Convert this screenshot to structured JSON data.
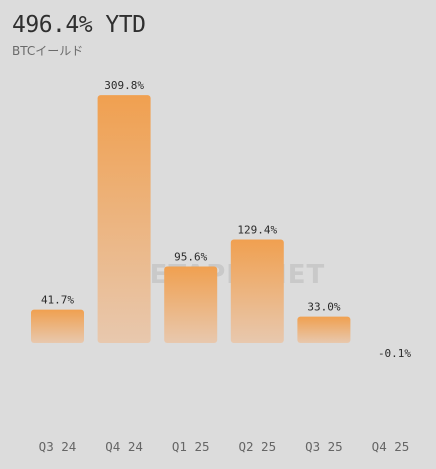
{
  "header": {
    "title": "496.4% YTD",
    "subtitle": "BTCイールド"
  },
  "watermark": "METAPLANET",
  "colors": {
    "background": "#dcdcdc",
    "bar_top": "#f0a050",
    "bar_bottom": "#e8c8ae"
  },
  "chart_data": {
    "type": "bar",
    "title": "496.4% YTD",
    "subtitle": "BTCイールド",
    "categories": [
      "Q3 24",
      "Q4 24",
      "Q1 25",
      "Q2 25",
      "Q3 25",
      "Q4 25"
    ],
    "values": [
      41.7,
      309.8,
      95.6,
      129.4,
      33.0,
      -0.1
    ],
    "labels": [
      "41.7%",
      "309.8%",
      "95.6%",
      "129.4%",
      "33.0%",
      "-0.1%"
    ],
    "ylim": [
      -160,
      320
    ],
    "grid": false,
    "legend": "none"
  }
}
